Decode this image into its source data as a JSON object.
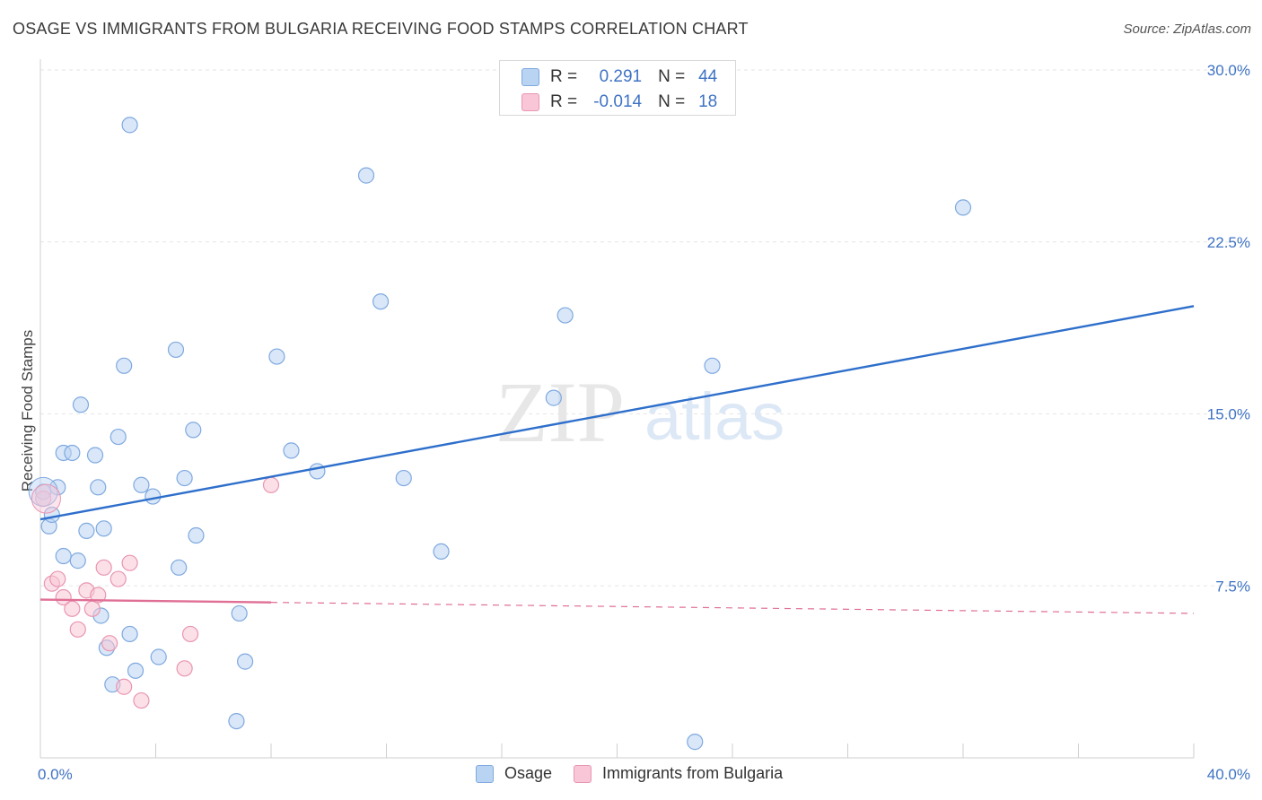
{
  "title": "OSAGE VS IMMIGRANTS FROM BULGARIA RECEIVING FOOD STAMPS CORRELATION CHART",
  "source": "Source: ZipAtlas.com",
  "watermark": {
    "part1": "ZIP",
    "part2": "atlas"
  },
  "legend": {
    "rows": [
      {
        "r_label": "R =",
        "r_value": "0.291",
        "n_label": "N =",
        "n_value": "44",
        "color": "#b9d3f3",
        "border": "#7fa9e0"
      },
      {
        "r_label": "R =",
        "r_value": "-0.014",
        "n_label": "N =",
        "n_value": "18",
        "color": "#f8c6d6",
        "border": "#e996b1"
      }
    ]
  },
  "bottom_legend": [
    {
      "label": "Osage",
      "color": "#b9d3f3",
      "border": "#7fa9e0"
    },
    {
      "label": "Immigrants from Bulgaria",
      "color": "#f8c6d6",
      "border": "#e996b1"
    }
  ],
  "chart_data": {
    "type": "scatter",
    "title": "OSAGE VS IMMIGRANTS FROM BULGARIA RECEIVING FOOD STAMPS CORRELATION CHART",
    "xlabel": "",
    "ylabel": "Receiving Food Stamps",
    "xlim": [
      0,
      40
    ],
    "ylim": [
      0,
      30
    ],
    "x_tick_labels": [
      "0.0%",
      "40.0%"
    ],
    "y_ticks": [
      7.5,
      15.0,
      22.5,
      30.0
    ],
    "y_tick_labels": [
      "7.5%",
      "15.0%",
      "22.5%",
      "30.0%"
    ],
    "grid": true,
    "series": [
      {
        "name": "Osage",
        "color": "#7fa9e0",
        "fill": "#b9d3f3",
        "trend": {
          "x": [
            0,
            40
          ],
          "y": [
            10.4,
            19.7
          ],
          "dashed_from": null
        },
        "points": [
          [
            0.1,
            11.6
          ],
          [
            0.3,
            10.1
          ],
          [
            0.4,
            10.6
          ],
          [
            0.6,
            11.8
          ],
          [
            0.8,
            8.8
          ],
          [
            0.8,
            13.3
          ],
          [
            1.1,
            13.3
          ],
          [
            1.3,
            8.6
          ],
          [
            1.4,
            15.4
          ],
          [
            1.6,
            9.9
          ],
          [
            1.9,
            13.2
          ],
          [
            2.0,
            11.8
          ],
          [
            2.1,
            6.2
          ],
          [
            2.2,
            10.0
          ],
          [
            2.3,
            4.8
          ],
          [
            2.5,
            3.2
          ],
          [
            2.7,
            14.0
          ],
          [
            2.9,
            17.1
          ],
          [
            3.1,
            5.4
          ],
          [
            3.1,
            27.6
          ],
          [
            3.3,
            3.8
          ],
          [
            3.5,
            11.9
          ],
          [
            3.9,
            11.4
          ],
          [
            4.1,
            4.4
          ],
          [
            4.7,
            17.8
          ],
          [
            4.8,
            8.3
          ],
          [
            5.0,
            12.2
          ],
          [
            5.3,
            14.3
          ],
          [
            5.4,
            9.7
          ],
          [
            6.8,
            1.6
          ],
          [
            6.9,
            6.3
          ],
          [
            7.1,
            4.2
          ],
          [
            8.2,
            17.5
          ],
          [
            8.7,
            13.4
          ],
          [
            9.6,
            12.5
          ],
          [
            11.3,
            25.4
          ],
          [
            11.8,
            19.9
          ],
          [
            12.6,
            12.2
          ],
          [
            13.9,
            9.0
          ],
          [
            17.8,
            15.7
          ],
          [
            18.2,
            19.3
          ],
          [
            22.7,
            0.7
          ],
          [
            23.3,
            17.1
          ],
          [
            32.0,
            24.0
          ]
        ]
      },
      {
        "name": "Immigrants from Bulgaria",
        "color": "#e996b1",
        "fill": "#f8c6d6",
        "trend": {
          "x": [
            0,
            40
          ],
          "y": [
            6.9,
            6.3
          ],
          "dashed_from": 8
        },
        "points": [
          [
            0.1,
            11.3
          ],
          [
            0.4,
            7.6
          ],
          [
            0.6,
            7.8
          ],
          [
            0.8,
            7.0
          ],
          [
            1.1,
            6.5
          ],
          [
            1.3,
            5.6
          ],
          [
            1.6,
            7.3
          ],
          [
            1.8,
            6.5
          ],
          [
            2.0,
            7.1
          ],
          [
            2.2,
            8.3
          ],
          [
            2.4,
            5.0
          ],
          [
            2.7,
            7.8
          ],
          [
            2.9,
            3.1
          ],
          [
            3.1,
            8.5
          ],
          [
            3.5,
            2.5
          ],
          [
            5.0,
            3.9
          ],
          [
            5.2,
            5.4
          ],
          [
            8.0,
            11.9
          ]
        ]
      }
    ]
  }
}
